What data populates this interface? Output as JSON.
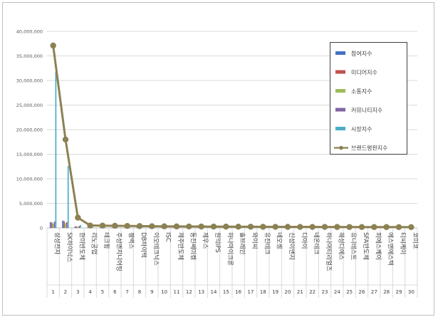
{
  "chart_data": {
    "type": "bar+line",
    "title": "",
    "xlabel": "",
    "ylabel": "",
    "ylim": [
      0,
      40000000
    ],
    "yticks": [
      "0",
      "5,000,000",
      "10,000,000",
      "15,000,000",
      "20,000,000",
      "25,000,000",
      "30,000,000",
      "35,000,000",
      "40,000,000"
    ],
    "ytick_values": [
      0,
      5000000,
      10000000,
      15000000,
      20000000,
      25000000,
      30000000,
      35000000,
      40000000
    ],
    "grid": true,
    "legend_position": "right",
    "categories": [
      "삼성전자",
      "SK하이닉스",
      "한미반도체",
      "리노공업",
      "테크윙",
      "주성엔지니어링",
      "젬백스",
      "DB하이텍",
      "이오테크닉스",
      "ISC",
      "제주반도체",
      "동진쎄미켐",
      "제우스",
      "원익IPS",
      "하나마이크론",
      "솔브레인",
      "와이씨",
      "유진테크",
      "네오셈",
      "신성이엔지",
      "디아이",
      "네온테크",
      "하나머티리얼즈",
      "해성디에스",
      "유니테스트",
      "SFA반도체",
      "피에스케이",
      "에스앤에스텍",
      "티씨케이",
      "코미코"
    ],
    "ranks": [
      "1",
      "2",
      "3",
      "4",
      "5",
      "6",
      "7",
      "8",
      "9",
      "10",
      "11",
      "12",
      "13",
      "14",
      "15",
      "16",
      "17",
      "18",
      "19",
      "20",
      "21",
      "22",
      "23",
      "24",
      "25",
      "26",
      "27",
      "28",
      "29",
      "30"
    ],
    "series": [
      {
        "name": "참여지수",
        "kind": "bar",
        "color": "#4472C4",
        "values": [
          1200000,
          1500000,
          300000,
          60000,
          50000,
          45000,
          40000,
          35000,
          30000,
          25000,
          25000,
          20000,
          20000,
          20000,
          18000,
          18000,
          15000,
          15000,
          15000,
          12000,
          12000,
          12000,
          10000,
          10000,
          10000,
          10000,
          8000,
          8000,
          8000,
          8000
        ]
      },
      {
        "name": "미디어지수",
        "kind": "bar",
        "color": "#C0504D",
        "values": [
          1100000,
          1400000,
          350000,
          70000,
          60000,
          55000,
          50000,
          45000,
          40000,
          35000,
          30000,
          30000,
          25000,
          25000,
          22000,
          20000,
          20000,
          18000,
          18000,
          15000,
          15000,
          14000,
          12000,
          12000,
          12000,
          10000,
          10000,
          10000,
          9000,
          9000
        ]
      },
      {
        "name": "소통지수",
        "kind": "bar",
        "color": "#9BBB59",
        "values": [
          900000,
          1000000,
          200000,
          50000,
          40000,
          35000,
          30000,
          28000,
          25000,
          22000,
          20000,
          18000,
          16000,
          15000,
          14000,
          13000,
          12000,
          11000,
          10000,
          9000,
          9000,
          8000,
          8000,
          7000,
          7000,
          6000,
          6000,
          5000,
          5000,
          5000
        ]
      },
      {
        "name": "커뮤니티지수",
        "kind": "bar",
        "color": "#8064A2",
        "values": [
          1300000,
          1200000,
          400000,
          80000,
          70000,
          65000,
          60000,
          55000,
          50000,
          45000,
          40000,
          38000,
          35000,
          32000,
          30000,
          28000,
          26000,
          24000,
          22000,
          20000,
          18000,
          16000,
          15000,
          14000,
          13000,
          12000,
          11000,
          10000,
          9000,
          8000
        ]
      },
      {
        "name": "시장지수",
        "kind": "bar",
        "color": "#4BACC6",
        "values": [
          31800000,
          12600000,
          600000,
          150000,
          120000,
          110000,
          100000,
          90000,
          85000,
          80000,
          75000,
          70000,
          65000,
          60000,
          55000,
          50000,
          48000,
          45000,
          42000,
          40000,
          38000,
          36000,
          34000,
          32000,
          30000,
          28000,
          26000,
          24000,
          22000,
          20000
        ]
      },
      {
        "name": "브랜드평판지수",
        "kind": "line",
        "color": "#8C8152",
        "values": [
          37100000,
          18000000,
          2100000,
          500000,
          480000,
          440000,
          410000,
          380000,
          350000,
          330000,
          310000,
          300000,
          290000,
          280000,
          270000,
          260000,
          250000,
          240000,
          230000,
          220000,
          215000,
          210000,
          205000,
          200000,
          195000,
          190000,
          185000,
          180000,
          175000,
          170000
        ]
      }
    ]
  }
}
